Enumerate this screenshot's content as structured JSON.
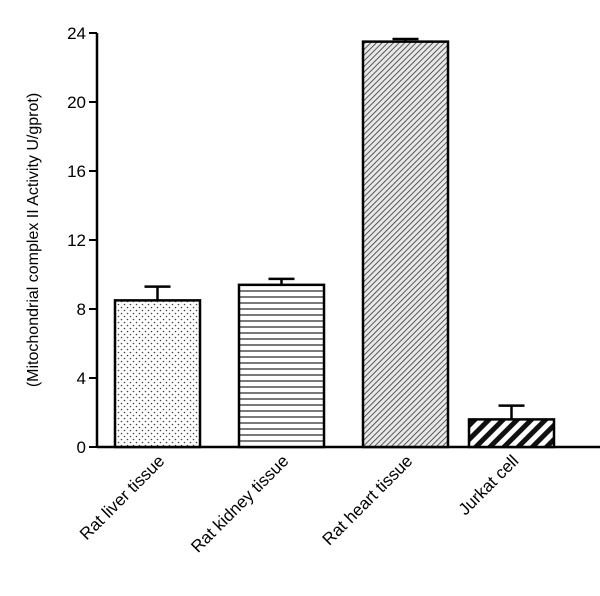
{
  "chart_data": {
    "type": "bar",
    "title": "",
    "xlabel": "",
    "ylabel": "(Mitochondrial  complex II Activity U/gprot)",
    "ylim": [
      0,
      24
    ],
    "yticks": [
      0,
      4,
      8,
      12,
      16,
      20,
      24
    ],
    "categories": [
      "Rat liver tissue",
      "Rat kidney tissue",
      "Rat heart tissue",
      "Jurkat cell"
    ],
    "values": [
      8.5,
      9.4,
      23.5,
      1.6
    ],
    "errors": [
      0.8,
      0.35,
      0.15,
      0.8
    ],
    "patterns": [
      "dots",
      "horizontal-lines",
      "fine-diagonal-hatch",
      "wide-diagonal-stripes"
    ],
    "grid": false,
    "legend": "none"
  }
}
